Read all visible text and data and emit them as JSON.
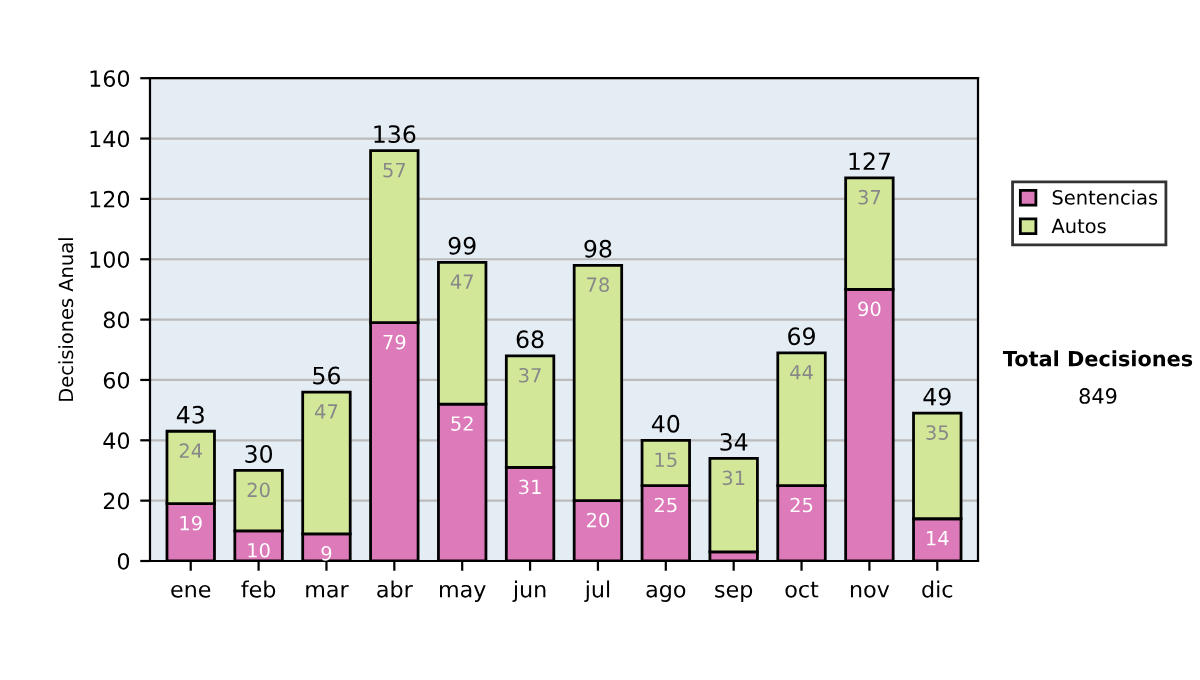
{
  "chart_data": {
    "type": "bar",
    "stacked": true,
    "ylabel": "Decisiones Anual",
    "categories": [
      "ene",
      "feb",
      "mar",
      "abr",
      "may",
      "jun",
      "jul",
      "ago",
      "sep",
      "oct",
      "nov",
      "dic"
    ],
    "series": [
      {
        "name": "Sentencias",
        "color": "#dd7ab9",
        "values": [
          19,
          10,
          9,
          79,
          52,
          31,
          20,
          25,
          3,
          25,
          90,
          14
        ],
        "value_labels": [
          "19",
          "10",
          "9",
          "79",
          "52",
          "31",
          "20",
          "25",
          null,
          "25",
          "90",
          "14"
        ]
      },
      {
        "name": "Autos",
        "color": "#d2e898",
        "values": [
          24,
          20,
          47,
          57,
          47,
          37,
          78,
          15,
          31,
          44,
          37,
          35
        ],
        "value_labels": [
          "24",
          "20",
          "47",
          "57",
          "47",
          "37",
          "78",
          "15",
          "31",
          "44",
          "37",
          "35"
        ]
      }
    ],
    "totals": [
      "43",
      "30",
      "56",
      "136",
      "99",
      "68",
      "98",
      "40",
      "34",
      "69",
      "127",
      "49"
    ],
    "ylim": [
      0,
      160
    ],
    "yticks": [
      0,
      20,
      40,
      60,
      80,
      100,
      120,
      140,
      160
    ],
    "grid": "y",
    "legend": "right",
    "annotations": [
      "Total Decisiones",
      "849"
    ]
  }
}
